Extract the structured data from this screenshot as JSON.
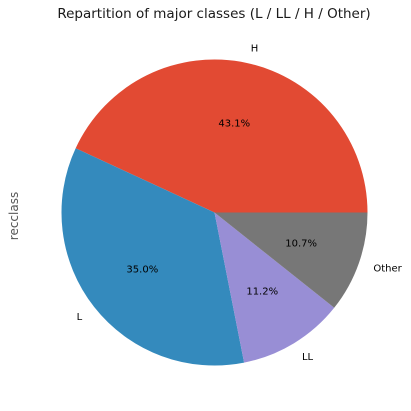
{
  "chart_data": {
    "type": "pie",
    "title": "Repartition of major classes (L / LL / H / Other)",
    "ylabel": "recclass",
    "categories": [
      "H",
      "L",
      "LL",
      "Other"
    ],
    "values": [
      43.1,
      35.0,
      11.2,
      10.7
    ],
    "pct_labels": [
      "43.1%",
      "35.0%",
      "11.2%",
      "10.7%"
    ],
    "colors": [
      "#E24A33",
      "#348ABD",
      "#988ED5",
      "#777777"
    ],
    "start_angle_deg": 0,
    "direction": "counterclockwise",
    "legend": "none"
  }
}
